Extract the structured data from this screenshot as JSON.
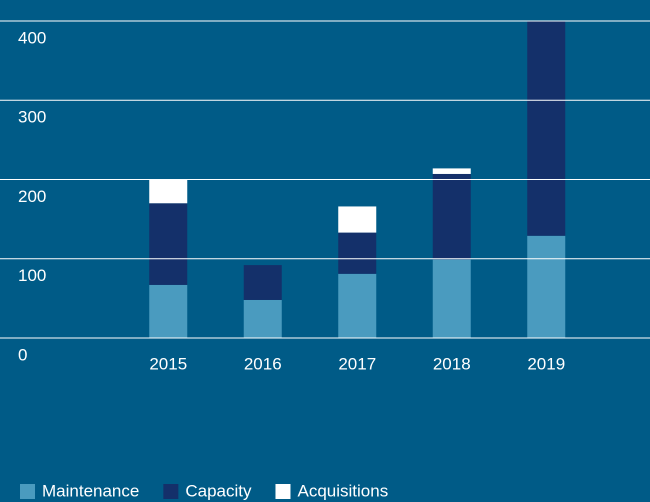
{
  "chart_data": {
    "type": "stacked_bar",
    "categories": [
      "2015",
      "2016",
      "2017",
      "2018",
      "2019"
    ],
    "series": [
      {
        "name": "Maintenance",
        "color": "#4a9bbf",
        "values": [
          67,
          48,
          81,
          99,
          129
        ]
      },
      {
        "name": "Capacity",
        "color": "#14306a",
        "values": [
          103,
          44,
          52,
          108,
          271
        ]
      },
      {
        "name": "Acquisitions",
        "color": "#ffffff",
        "values": [
          30,
          0,
          33,
          7,
          0
        ]
      }
    ],
    "ylim": [
      0,
      400
    ],
    "yticks": [
      0,
      100,
      200,
      300,
      400
    ],
    "grid": true,
    "background": "#005b87",
    "legend": "bottom-left"
  }
}
